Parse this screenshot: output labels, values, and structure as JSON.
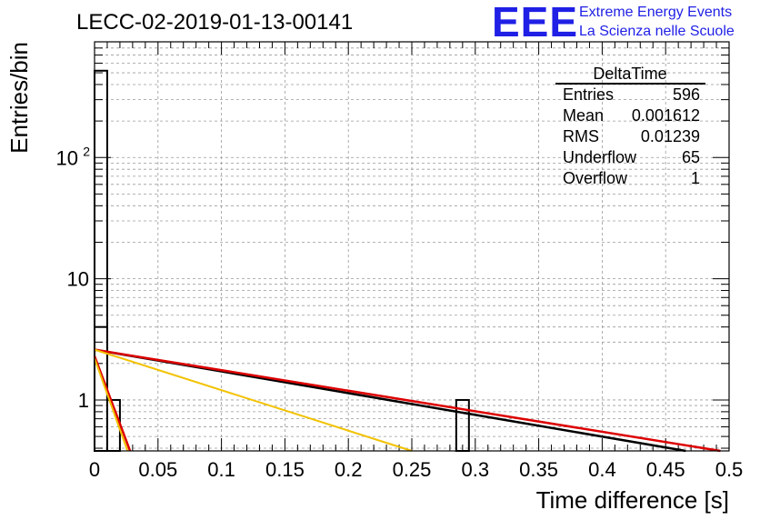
{
  "header": {
    "title": "LECC-02-2019-01-13-00141",
    "logo_text": "EEE",
    "org_line1": "Extreme Energy Events",
    "org_line2": "La Scienza nelle Scuole"
  },
  "colors": {
    "logo_blue": "#1f1fe6",
    "grid": "#9a9a9a",
    "fit_black": "#000000",
    "fit_red": "#dd0000",
    "fit_yellow": "#f2c200"
  },
  "stats": {
    "name": "DeltaTime",
    "rows": [
      {
        "label": "Entries",
        "value": "596"
      },
      {
        "label": "Mean",
        "value": "0.001612"
      },
      {
        "label": "RMS",
        "value": "0.01239"
      },
      {
        "label": "Underflow",
        "value": "65"
      },
      {
        "label": "Overflow",
        "value": "1"
      }
    ]
  },
  "chart_data": {
    "type": "histogram",
    "xlabel": "Time difference [s]",
    "ylabel": "Entries/bin",
    "xlim": [
      0,
      0.5
    ],
    "ylim": [
      0.38,
      900
    ],
    "y_scale": "log",
    "grid": true,
    "x_ticks": [
      "0",
      "0.05",
      "0.1",
      "0.15",
      "0.2",
      "0.25",
      "0.3",
      "0.35",
      "0.4",
      "0.45",
      "0.5"
    ],
    "y_ticks": [
      {
        "value": 1,
        "label": "1"
      },
      {
        "value": 10,
        "label": "10"
      },
      {
        "value": 100,
        "label": "10",
        "exp": "2"
      }
    ],
    "bin_width": 0.01,
    "bins": [
      {
        "x_low": 0.0,
        "count": 520
      },
      {
        "x_low": 0.01,
        "count": 1
      },
      {
        "x_low": 0.285,
        "count": 1
      }
    ],
    "bins_extra": [
      {
        "x_low": 0.0,
        "count": 4
      }
    ],
    "fits": [
      {
        "color": "black",
        "x": [
          0.0,
          0.5
        ],
        "y": [
          2.6,
          0.33
        ]
      },
      {
        "color": "red",
        "x": [
          0.0,
          0.5
        ],
        "y": [
          2.6,
          0.37
        ]
      },
      {
        "color": "yellow",
        "x": [
          0.0,
          0.25
        ],
        "y": [
          2.6,
          0.38
        ]
      },
      {
        "color": "red",
        "x": [
          0.0,
          0.028
        ],
        "y": [
          2.3,
          0.38
        ]
      },
      {
        "color": "yellow",
        "x": [
          0.0,
          0.026
        ],
        "y": [
          2.2,
          0.38
        ]
      }
    ]
  }
}
